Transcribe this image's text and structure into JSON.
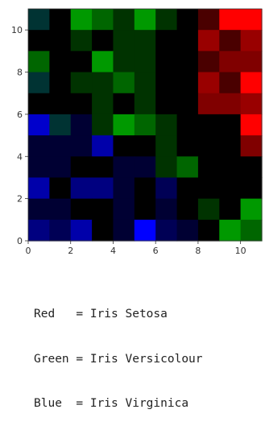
{
  "chart_data": {
    "type": "heatmap",
    "grid_size": [
      11,
      11
    ],
    "xlim": [
      0,
      11
    ],
    "ylim": [
      0,
      11
    ],
    "x_ticks": [
      0,
      2,
      4,
      6,
      8,
      10
    ],
    "y_ticks": [
      0,
      2,
      4,
      6,
      8,
      10
    ],
    "x_tick_labels": [
      "0",
      "2",
      "4",
      "6",
      "8",
      "10"
    ],
    "y_tick_labels": [
      "0",
      "2",
      "4",
      "6",
      "8",
      "10"
    ],
    "origin": "lower",
    "cells_top_row_first": [
      [
        "#003333",
        "#000000",
        "#009900",
        "#006600",
        "#003300",
        "#009900",
        "#003300",
        "#000000",
        "#4a0000",
        "#ff0000",
        "#ff0000"
      ],
      [
        "#000000",
        "#000000",
        "#003300",
        "#000000",
        "#003300",
        "#003300",
        "#000000",
        "#000000",
        "#990000",
        "#4a0000",
        "#990000"
      ],
      [
        "#006600",
        "#000000",
        "#000000",
        "#009900",
        "#003300",
        "#003300",
        "#000000",
        "#000000",
        "#4a0000",
        "#800000",
        "#800000"
      ],
      [
        "#003333",
        "#000000",
        "#003300",
        "#003300",
        "#006600",
        "#003300",
        "#000000",
        "#000000",
        "#990000",
        "#4a0000",
        "#ff0000"
      ],
      [
        "#000000",
        "#000000",
        "#000000",
        "#003300",
        "#000000",
        "#003300",
        "#000000",
        "#000000",
        "#800000",
        "#800000",
        "#990000"
      ],
      [
        "#0000cc",
        "#003333",
        "#000033",
        "#003300",
        "#009900",
        "#006600",
        "#003300",
        "#000000",
        "#000000",
        "#000000",
        "#ff0000"
      ],
      [
        "#000033",
        "#000033",
        "#000033",
        "#0000aa",
        "#000000",
        "#000000",
        "#003300",
        "#000000",
        "#000000",
        "#000000",
        "#800000"
      ],
      [
        "#000033",
        "#000033",
        "#000000",
        "#000000",
        "#000033",
        "#000033",
        "#003300",
        "#006600",
        "#000000",
        "#000000",
        "#000000"
      ],
      [
        "#0000aa",
        "#000000",
        "#000080",
        "#000080",
        "#000033",
        "#000000",
        "#000055",
        "#000000",
        "#000000",
        "#000000",
        "#000000"
      ],
      [
        "#000033",
        "#000033",
        "#000000",
        "#000000",
        "#000033",
        "#000000",
        "#000033",
        "#000000",
        "#003300",
        "#000000",
        "#009900"
      ],
      [
        "#000080",
        "#000055",
        "#0000aa",
        "#000000",
        "#000033",
        "#0000ff",
        "#000055",
        "#000033",
        "#000000",
        "#009900",
        "#006600"
      ]
    ]
  },
  "legend": {
    "lines": [
      "Red   = Iris Setosa",
      "Green = Iris Versicolour",
      "Blue  = Iris Virginica"
    ]
  },
  "colors": {
    "axis": "#333333",
    "tick_label": "#333333",
    "legend_text": "#222222"
  }
}
